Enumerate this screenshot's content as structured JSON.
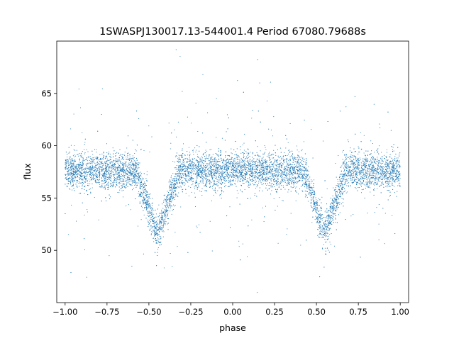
{
  "chart_data": {
    "type": "scatter",
    "title": "1SWASPJ130017.13-544001.4 Period 67080.79688s",
    "xlabel": "phase",
    "ylabel": "flux",
    "xlim": [
      -1.05,
      1.05
    ],
    "ylim": [
      45,
      70
    ],
    "x_ticks": [
      -1.0,
      -0.75,
      -0.5,
      -0.25,
      0.0,
      0.25,
      0.5,
      0.75,
      1.0
    ],
    "x_tick_labels": [
      "−1.00",
      "−0.75",
      "−0.50",
      "−0.25",
      "0.00",
      "0.25",
      "0.50",
      "0.75",
      "1.00"
    ],
    "y_ticks": [
      50,
      55,
      60,
      65
    ],
    "y_tick_labels": [
      "50",
      "55",
      "60",
      "65"
    ],
    "grid": false,
    "legend": "none",
    "series_color": "#1f77b4",
    "baseline_flux": 57.6,
    "eclipses": [
      {
        "center_phase": -0.45,
        "min_flux": 51.5,
        "half_width_phase": 0.125
      },
      {
        "center_phase": 0.55,
        "min_flux": 51.5,
        "half_width_phase": 0.125
      }
    ],
    "phase_range": [
      -1.0,
      1.0
    ]
  }
}
